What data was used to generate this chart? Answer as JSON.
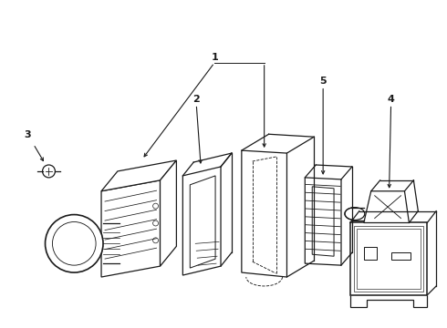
{
  "bg_color": "#ffffff",
  "line_color": "#1a1a1a",
  "figsize": [
    4.9,
    3.6
  ],
  "dpi": 100,
  "parts": {
    "part1_label": "1",
    "part2_label": "2",
    "part3_label": "3",
    "part4_label": "4",
    "part5_label": "5"
  }
}
